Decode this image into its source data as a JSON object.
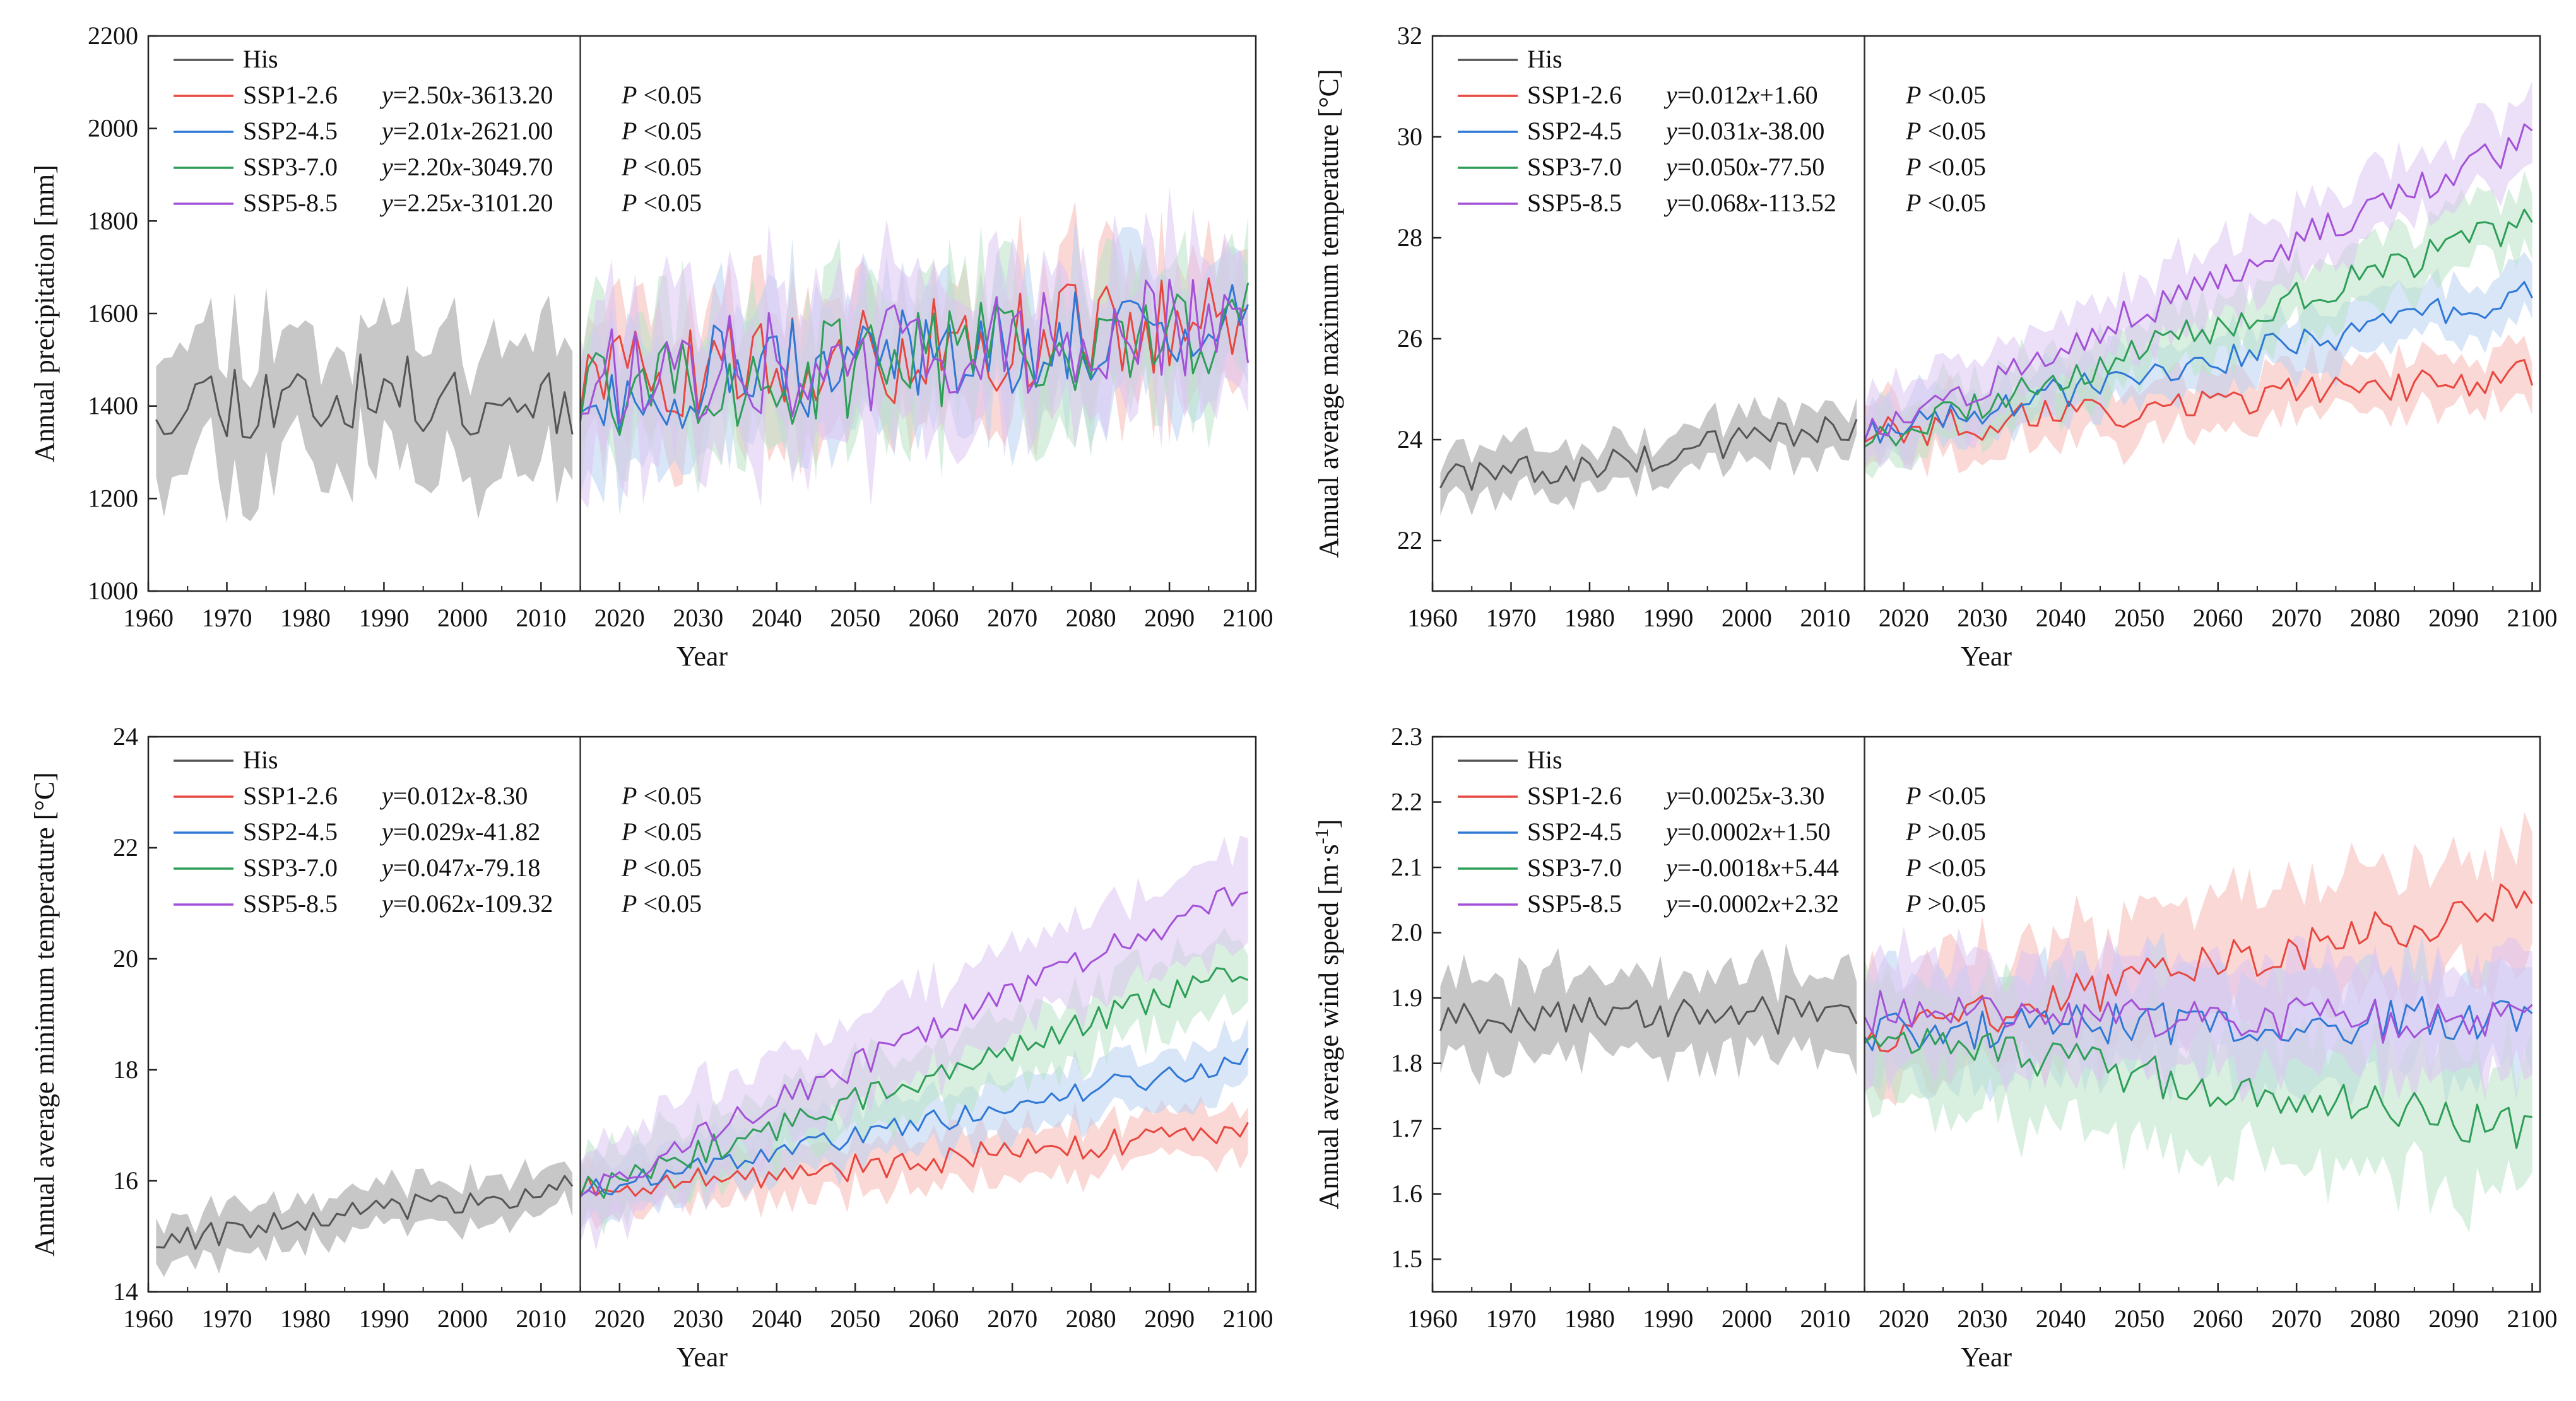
{
  "figure": {
    "x_axis": {
      "label": "Year",
      "range": [
        1960,
        2101
      ],
      "ticks": [
        1960,
        1970,
        1980,
        1990,
        2000,
        2010,
        2020,
        2030,
        2040,
        2050,
        2060,
        2070,
        2080,
        2090,
        2100
      ]
    },
    "divider_year": 2015,
    "series_colors": {
      "His": "#555555",
      "SSP1-2.6": "#e8473f",
      "SSP2-4.5": "#2f78d6",
      "SSP3-7.0": "#2e9e58",
      "SSP5-8.5": "#a352d8"
    },
    "band_colors": {
      "His": "#bdbdbd",
      "SSP1-2.6": "#f6b8b3",
      "SSP2-4.5": "#b9d2f2",
      "SSP3-7.0": "#b9e3c7",
      "SSP5-8.5": "#dcc4f3"
    },
    "italic_vars": {
      "y": "y",
      "x": "x",
      "p": "P"
    }
  },
  "chart_data": [
    {
      "id": "precip",
      "type": "line",
      "ylabel": "Annual precipitation [mm]",
      "ylim": [
        1000,
        2200
      ],
      "yticks": [
        1000,
        1200,
        1400,
        1600,
        1800,
        2000,
        2200
      ],
      "xlabel": "Year",
      "his": {
        "name": "His",
        "start": 1961,
        "end": 2014,
        "level": [
          1420,
          1420
        ],
        "noise": 95,
        "band": 140
      },
      "ssp": [
        {
          "name": "SSP1-2.6",
          "eq_pre": "=2.50",
          "eq_mid": "-3613.20",
          "p_text": " <0.05",
          "start": 2015,
          "end": 2100,
          "level": [
            1440,
            1600
          ],
          "noise": 110,
          "band": 130
        },
        {
          "name": "SSP2-4.5",
          "eq_pre": "=2.01",
          "eq_mid": "-2621.00",
          "p_text": " <0.05",
          "start": 2015,
          "end": 2100,
          "level": [
            1440,
            1570
          ],
          "noise": 110,
          "band": 130
        },
        {
          "name": "SSP3-7.0",
          "eq_pre": "=2.20",
          "eq_mid": "-3049.70",
          "p_text": " <0.05",
          "start": 2015,
          "end": 2100,
          "level": [
            1420,
            1580
          ],
          "noise": 110,
          "band": 130
        },
        {
          "name": "SSP5-8.5",
          "eq_pre": "=2.25",
          "eq_mid": "-3101.20",
          "p_text": " <0.05",
          "start": 2015,
          "end": 2100,
          "level": [
            1440,
            1600
          ],
          "noise": 120,
          "band": 150
        }
      ]
    },
    {
      "id": "tmax",
      "type": "line",
      "ylabel": "Annual average maximum temperature [°C]",
      "ylim": [
        21,
        32
      ],
      "yticks": [
        22,
        24,
        26,
        28,
        30,
        32
      ],
      "xlabel": "Year",
      "his": {
        "name": "His",
        "start": 1961,
        "end": 2014,
        "level": [
          23.2,
          24.2
        ],
        "noise": 0.35,
        "band": 0.45
      },
      "ssp": [
        {
          "name": "SSP1-2.6",
          "eq_pre": "=0.012",
          "eq_mid": "+1.60",
          "p_text": " <0.05",
          "start": 2015,
          "end": 2100,
          "level": [
            24.1,
            25.3
          ],
          "noise": 0.35,
          "band": 0.55
        },
        {
          "name": "SSP2-4.5",
          "eq_pre": "=0.031",
          "eq_mid": "-38.00",
          "p_text": " <0.05",
          "start": 2015,
          "end": 2100,
          "level": [
            24.1,
            26.9
          ],
          "noise": 0.3,
          "band": 0.55
        },
        {
          "name": "SSP3-7.0",
          "eq_pre": "=0.050",
          "eq_mid": "-77.50",
          "p_text": " <0.05",
          "start": 2015,
          "end": 2100,
          "level": [
            24.0,
            28.3
          ],
          "noise": 0.35,
          "band": 0.6
        },
        {
          "name": "SSP5-8.5",
          "eq_pre": "=0.068",
          "eq_mid": "-113.52",
          "p_text": " <0.05",
          "start": 2015,
          "end": 2100,
          "level": [
            24.1,
            30.0
          ],
          "noise": 0.35,
          "band": 0.7
        }
      ]
    },
    {
      "id": "tmin",
      "type": "line",
      "ylabel": "Annual average minimum temperature [°C]",
      "ylim": [
        14,
        24
      ],
      "yticks": [
        14,
        16,
        18,
        20,
        22,
        24
      ],
      "xlabel": "Year",
      "his": {
        "name": "His",
        "start": 1961,
        "end": 2014,
        "level": [
          14.9,
          15.9
        ],
        "noise": 0.25,
        "band": 0.4
      },
      "ssp": [
        {
          "name": "SSP1-2.6",
          "eq_pre": "=0.012",
          "eq_mid": "-8.30",
          "p_text": " <0.05",
          "start": 2015,
          "end": 2100,
          "level": [
            15.8,
            16.9
          ],
          "noise": 0.25,
          "band": 0.45
        },
        {
          "name": "SSP2-4.5",
          "eq_pre": "=0.029",
          "eq_mid": "-41.82",
          "p_text": " <0.05",
          "start": 2015,
          "end": 2100,
          "level": [
            15.8,
            18.2
          ],
          "noise": 0.2,
          "band": 0.5
        },
        {
          "name": "SSP3-7.0",
          "eq_pre": "=0.047",
          "eq_mid": "-79.18",
          "p_text": " <0.05",
          "start": 2015,
          "end": 2100,
          "level": [
            15.8,
            19.8
          ],
          "noise": 0.25,
          "band": 0.6
        },
        {
          "name": "SSP5-8.5",
          "eq_pre": "=0.062",
          "eq_mid": "-109.32",
          "p_text": " <0.05",
          "start": 2015,
          "end": 2100,
          "level": [
            15.8,
            21.3
          ],
          "noise": 0.25,
          "band": 0.8
        }
      ]
    },
    {
      "id": "wind",
      "type": "line",
      "ylabel": "Annual average wind speed [m·s",
      "ylabel_sup": "-1",
      "ylabel_end": "]",
      "ylim": [
        1.45,
        2.3
      ],
      "yticks": [
        1.5,
        1.6,
        1.7,
        1.8,
        1.9,
        2.0,
        2.1,
        2.2,
        2.3
      ],
      "ytick_decimals": 1,
      "xlabel": "Year",
      "his": {
        "name": "His",
        "start": 1961,
        "end": 2014,
        "level": [
          1.86,
          1.88
        ],
        "noise": 0.035,
        "band": 0.06
      },
      "ssp": [
        {
          "name": "SSP1-2.6",
          "eq_pre": "=0.0025",
          "eq_mid": "-3.30",
          "p_text": " <0.05",
          "start": 2015,
          "end": 2100,
          "level": [
            1.84,
            2.05
          ],
          "noise": 0.035,
          "band": 0.09
        },
        {
          "name": "SSP2-4.5",
          "eq_pre": "=0.0002",
          "eq_mid": "+1.50",
          "p_text": " >0.05",
          "start": 2015,
          "end": 2100,
          "level": [
            1.85,
            1.87
          ],
          "noise": 0.035,
          "band": 0.08
        },
        {
          "name": "SSP3-7.0",
          "eq_pre": "=-0.0018",
          "eq_mid": "+5.44",
          "p_text": " <0.05",
          "start": 2015,
          "end": 2100,
          "level": [
            1.84,
            1.7
          ],
          "noise": 0.035,
          "band": 0.1
        },
        {
          "name": "SSP5-8.5",
          "eq_pre": "=-0.0002",
          "eq_mid": "+2.32",
          "p_text": " >0.05",
          "start": 2015,
          "end": 2100,
          "level": [
            1.88,
            1.86
          ],
          "noise": 0.035,
          "band": 0.08
        }
      ]
    }
  ]
}
